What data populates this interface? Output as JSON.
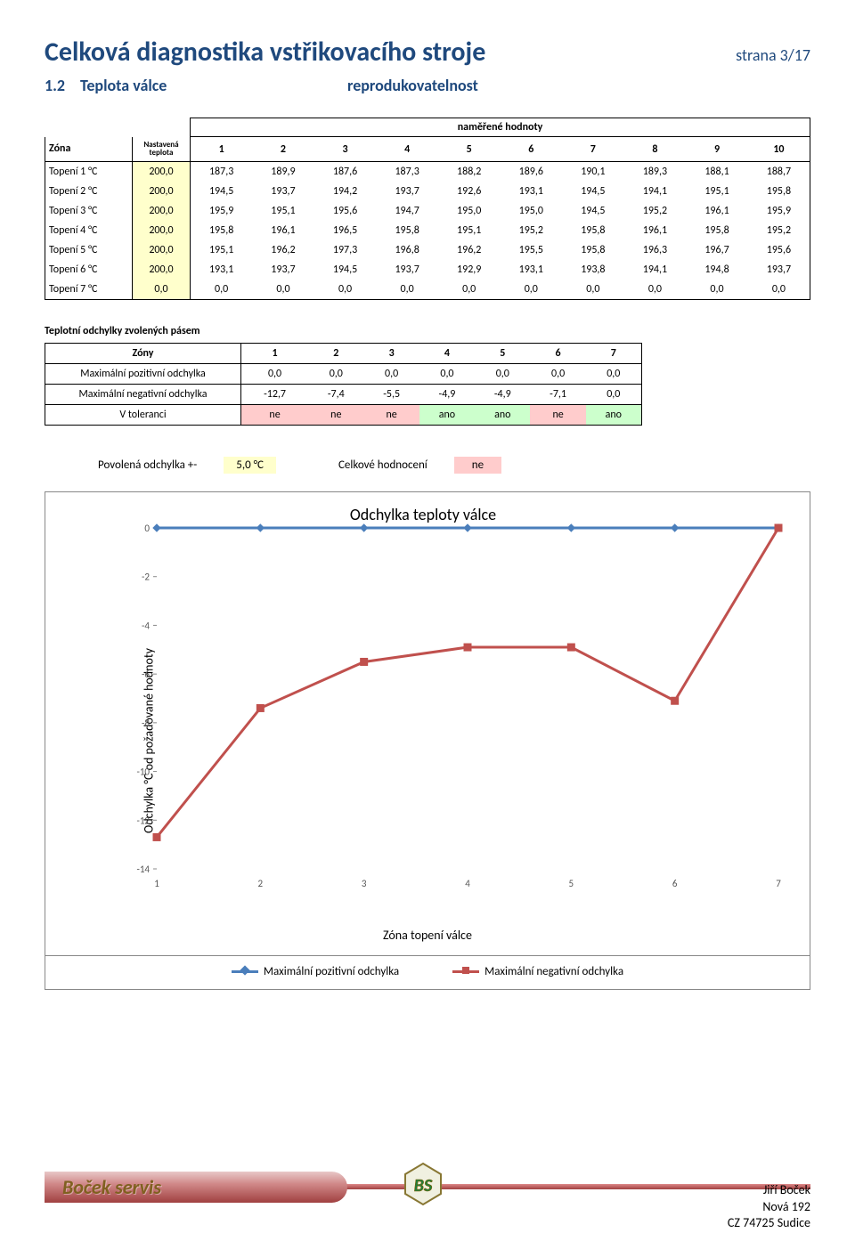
{
  "header": {
    "title": "Celková diagnostika vstřikovacího stroje",
    "page": "strana 3/17",
    "section_num": "1.2",
    "section_label": "Teplota válce",
    "section_extra": "reprodukovatelnost"
  },
  "table1": {
    "measured_label": "naměřené hodnoty",
    "zone_label": "Zóna",
    "set_label": "Nastavená teplota",
    "col_nums": [
      "1",
      "2",
      "3",
      "4",
      "5",
      "6",
      "7",
      "8",
      "9",
      "10"
    ],
    "rows": [
      {
        "label": "Topení 1 °C",
        "set": "200,0",
        "vals": [
          "187,3",
          "189,9",
          "187,6",
          "187,3",
          "188,2",
          "189,6",
          "190,1",
          "189,3",
          "188,1",
          "188,7"
        ]
      },
      {
        "label": "Topení 2 °C",
        "set": "200,0",
        "vals": [
          "194,5",
          "193,7",
          "194,2",
          "193,7",
          "192,6",
          "193,1",
          "194,5",
          "194,1",
          "195,1",
          "195,8"
        ]
      },
      {
        "label": "Topení 3 °C",
        "set": "200,0",
        "vals": [
          "195,9",
          "195,1",
          "195,6",
          "194,7",
          "195,0",
          "195,0",
          "194,5",
          "195,2",
          "196,1",
          "195,9"
        ]
      },
      {
        "label": "Topení 4 °C",
        "set": "200,0",
        "vals": [
          "195,8",
          "196,1",
          "196,5",
          "195,8",
          "195,1",
          "195,2",
          "195,8",
          "196,1",
          "195,8",
          "195,2"
        ]
      },
      {
        "label": "Topení 5 °C",
        "set": "200,0",
        "vals": [
          "195,1",
          "196,2",
          "197,3",
          "196,8",
          "196,2",
          "195,5",
          "195,8",
          "196,3",
          "196,7",
          "195,6"
        ]
      },
      {
        "label": "Topení 6 °C",
        "set": "200,0",
        "vals": [
          "193,1",
          "193,7",
          "194,5",
          "193,7",
          "192,9",
          "193,1",
          "193,8",
          "194,1",
          "194,8",
          "193,7"
        ]
      },
      {
        "label": "Topení 7 °C",
        "set": "0,0",
        "vals": [
          "0,0",
          "0,0",
          "0,0",
          "0,0",
          "0,0",
          "0,0",
          "0,0",
          "0,0",
          "0,0",
          "0,0"
        ]
      }
    ]
  },
  "table2": {
    "title": "Teplotní odchylky zvolených pásem",
    "zone_label": "Zóny",
    "col_nums": [
      "1",
      "2",
      "3",
      "4",
      "5",
      "6",
      "7"
    ],
    "rows": [
      {
        "label": "Maximální pozitivní odchylka",
        "vals": [
          "0,0",
          "0,0",
          "0,0",
          "0,0",
          "0,0",
          "0,0",
          "0,0"
        ]
      },
      {
        "label": "Maximální negativní odchylka",
        "vals": [
          "-12,7",
          "-7,4",
          "-5,5",
          "-4,9",
          "-4,9",
          "-7,1",
          "0,0"
        ]
      },
      {
        "label": "V toleranci",
        "vals": [
          "ne",
          "ne",
          "ne",
          "ano",
          "ano",
          "ne",
          "ano"
        ]
      }
    ]
  },
  "summary": {
    "tol_label": "Povolená odchylka +-",
    "tol_val": "5,0 °C",
    "overall_label": "Celkové hodnocení",
    "overall_val": "ne"
  },
  "chart": {
    "type": "line",
    "title": "Odchylka teploty válce",
    "y_label": "Odchylka °C od požadované hodnoty",
    "x_label": "Zóna topení válce",
    "x_categories": [
      1,
      2,
      3,
      4,
      5,
      6,
      7
    ],
    "y_ticks": [
      0,
      -2,
      -4,
      -6,
      -8,
      -10,
      -12,
      -14
    ],
    "ylim": [
      -14,
      0
    ],
    "series": [
      {
        "name": "Maximální pozitivní odchylka",
        "color": "#4a7ebb",
        "marker": "diamond",
        "line_width": 3,
        "values": [
          0,
          0,
          0,
          0,
          0,
          0,
          0
        ]
      },
      {
        "name": "Maximální negativní odchylka",
        "color": "#c0504d",
        "marker": "square",
        "line_width": 3,
        "values": [
          -12.7,
          -7.4,
          -5.5,
          -4.9,
          -4.9,
          -7.1,
          0
        ]
      }
    ],
    "background_color": "#ffffff",
    "grid": false,
    "tick_fontsize": 11,
    "marker_size": 8
  },
  "footer": {
    "brand": "Boček servis",
    "logo_text": "BS",
    "name": "Jiří Boček",
    "addr": "Nová 192",
    "city": "CZ 74725 Sudice"
  }
}
